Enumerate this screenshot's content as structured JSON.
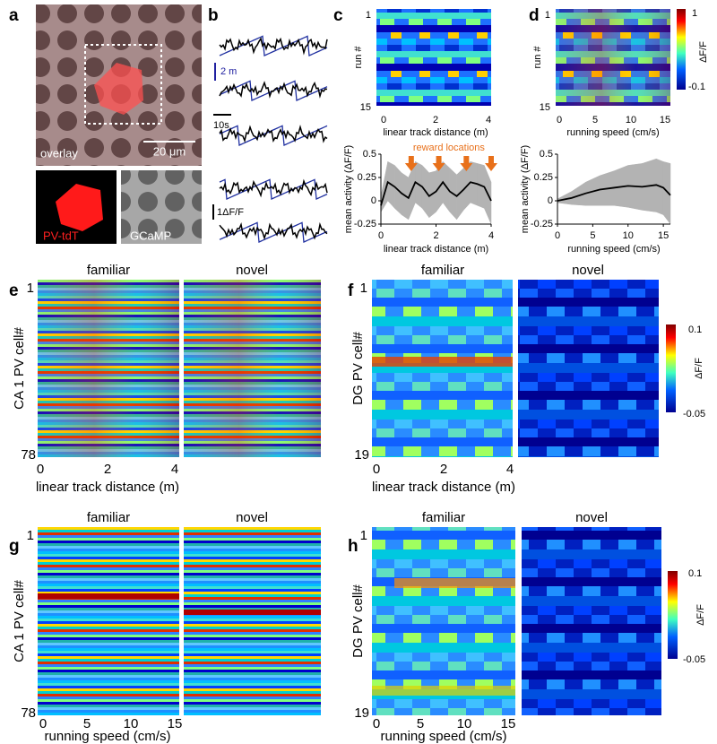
{
  "panels": {
    "a": {
      "label": "a",
      "overlay_label": "overlay",
      "scale_bar": "20 μm",
      "left_label": "PV-tdT",
      "right_label": "GCaMP"
    },
    "b": {
      "label": "b",
      "distance_scale": "2 m",
      "time_scale": "10s",
      "activity_scale": "1ΔF/F"
    },
    "c": {
      "label": "c",
      "ylabel": "run #",
      "yticks": [
        "1",
        "15"
      ],
      "xticks": [
        "0",
        "2",
        "4"
      ],
      "xlabel": "linear track distance (m)"
    },
    "d": {
      "label": "d",
      "ylabel": "run #",
      "yticks": [
        "1",
        "15"
      ],
      "xticks": [
        "0",
        "5",
        "10",
        "15"
      ],
      "xlabel": "running speed (cm/s)",
      "colorbar": [
        "1",
        "ΔF/F",
        "-0.1"
      ]
    },
    "e": {
      "label": "e",
      "titles": [
        "familiar",
        "novel"
      ],
      "ylabel": "CA 1 PV cell#",
      "yticks": [
        "1",
        "78"
      ],
      "xticks": [
        "0",
        "2",
        "4"
      ],
      "xlabel": "linear track distance (m)"
    },
    "f": {
      "label": "f",
      "titles": [
        "familiar",
        "novel"
      ],
      "ylabel": "DG PV cell#",
      "yticks": [
        "1",
        "19"
      ],
      "xticks": [
        "0",
        "2",
        "4"
      ],
      "xlabel": "linear track distance (m)",
      "colorbar": [
        "0.1",
        "ΔF/F",
        "-0.05"
      ]
    },
    "g": {
      "label": "g",
      "titles": [
        "familiar",
        "novel"
      ],
      "ylabel": "CA 1 PV cell#",
      "yticks": [
        "1",
        "78"
      ],
      "xticks": [
        "0",
        "5",
        "10",
        "15"
      ],
      "xlabel": "running speed (cm/s)"
    },
    "h": {
      "label": "h",
      "titles": [
        "familiar",
        "novel"
      ],
      "ylabel": "DG PV cell#",
      "yticks": [
        "1",
        "19"
      ],
      "xticks": [
        "0",
        "5",
        "10",
        "15"
      ],
      "xlabel": "running speed (cm/s)",
      "colorbar": [
        "0.1",
        "ΔF/F",
        "-0.05"
      ]
    }
  },
  "chart_data": [
    {
      "type": "line",
      "xlabel": "linear track distance (m)",
      "ylabel": "mean activity (ΔF/F)",
      "annotation": "reward locations",
      "x": [
        0,
        0.25,
        0.5,
        0.75,
        1,
        1.25,
        1.5,
        1.75,
        2,
        2.25,
        2.5,
        2.75,
        3,
        3.25,
        3.5,
        3.75,
        4
      ],
      "series": [
        {
          "color": "#000000",
          "values": [
            -0.05,
            0.2,
            0.15,
            0.08,
            0.03,
            0.2,
            0.15,
            0.05,
            0.1,
            0.2,
            0.1,
            0.05,
            0.12,
            0.2,
            0.18,
            0.15,
            0.0
          ]
        }
      ],
      "band": {
        "color": "#b3b3b3",
        "upper": [
          0.05,
          0.42,
          0.38,
          0.3,
          0.25,
          0.42,
          0.38,
          0.3,
          0.32,
          0.42,
          0.35,
          0.28,
          0.35,
          0.42,
          0.4,
          0.38,
          0.2
        ],
        "lower": [
          -0.12,
          0.0,
          -0.08,
          -0.15,
          -0.2,
          -0.02,
          -0.08,
          -0.18,
          -0.12,
          -0.02,
          -0.12,
          -0.2,
          -0.1,
          -0.02,
          -0.05,
          -0.08,
          -0.25
        ]
      },
      "arrows": {
        "color": "#e8701a",
        "x": [
          1.1,
          2.1,
          3.1,
          4.0
        ]
      },
      "xlim": [
        0,
        4
      ],
      "ylim": [
        -0.25,
        0.5
      ],
      "xticks": [
        0,
        2,
        4
      ],
      "yticks": [
        -0.25,
        0,
        0.25,
        0.5
      ]
    },
    {
      "type": "line",
      "xlabel": "running speed (cm/s)",
      "ylabel": "mean activity (ΔF/F)",
      "x": [
        0,
        2,
        4,
        6,
        8,
        10,
        12,
        14,
        15,
        16
      ],
      "series": [
        {
          "color": "#000000",
          "values": [
            0,
            0.03,
            0.08,
            0.12,
            0.14,
            0.16,
            0.15,
            0.17,
            0.14,
            0.06
          ]
        }
      ],
      "band": {
        "color": "#b3b3b3",
        "upper": [
          0.02,
          0.1,
          0.2,
          0.27,
          0.32,
          0.38,
          0.4,
          0.45,
          0.42,
          0.4
        ],
        "lower": [
          -0.02,
          -0.04,
          -0.05,
          -0.05,
          -0.05,
          -0.07,
          -0.1,
          -0.12,
          -0.15,
          -0.25
        ]
      },
      "xlim": [
        0,
        16
      ],
      "ylim": [
        -0.25,
        0.5
      ],
      "xticks": [
        0,
        5,
        10,
        15
      ],
      "yticks": [
        -0.25,
        0,
        0.25,
        0.5
      ]
    }
  ]
}
